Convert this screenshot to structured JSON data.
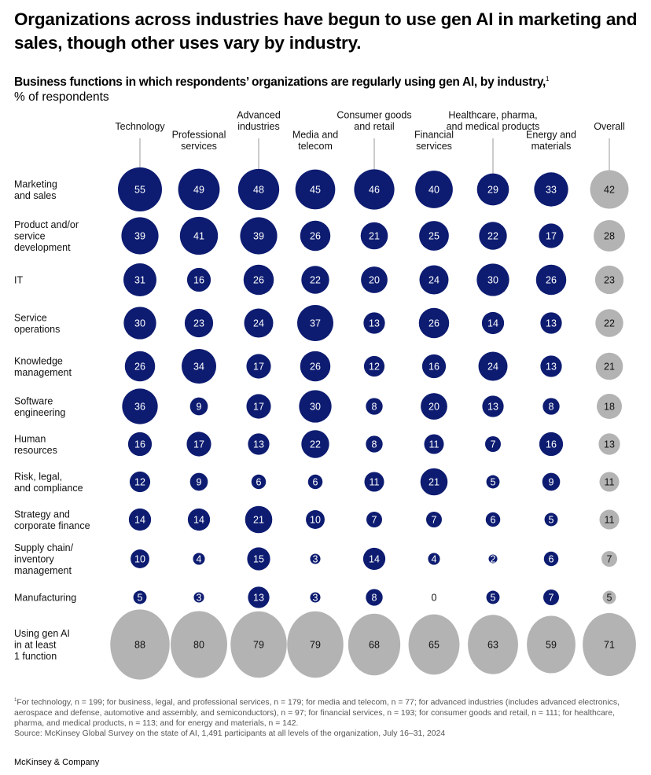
{
  "title": "Organizations across industries have begun to use gen AI in marketing and sales, though other uses vary by industry.",
  "subtitle": "Business functions in which respondents’ organizations are regularly using gen AI, by industry,",
  "subtitle_footnote_marker": "1",
  "units": "% of respondents",
  "colors": {
    "industry_bubble": "#0d1c71",
    "overall_bubble": "#b3b3b3",
    "total_row_bubble": "#b3b3b3",
    "leader_line": "#999999"
  },
  "chart_data": {
    "type": "bubble-matrix",
    "title": "Business functions in which respondents’ organizations are regularly using gen AI, by industry",
    "units": "% of respondents",
    "columns": [
      {
        "name": "Technology",
        "lines": [
          "Technology"
        ],
        "level": "upper"
      },
      {
        "name": "Professional services",
        "lines": [
          "Professional",
          "services"
        ],
        "level": "lower"
      },
      {
        "name": "Advanced industries",
        "lines": [
          "Advanced",
          "industries"
        ],
        "level": "upper"
      },
      {
        "name": "Media and telecom",
        "lines": [
          "Media and",
          "telecom"
        ],
        "level": "lower"
      },
      {
        "name": "Consumer goods and retail",
        "lines": [
          "Consumer goods",
          "and retail"
        ],
        "level": "upper"
      },
      {
        "name": "Financial services",
        "lines": [
          "Financial",
          "services"
        ],
        "level": "lower"
      },
      {
        "name": "Healthcare, pharma, and medical products",
        "lines": [
          "Healthcare, pharma,",
          "and medical products"
        ],
        "level": "upper"
      },
      {
        "name": "Energy and materials",
        "lines": [
          "Energy and",
          "materials"
        ],
        "level": "lower"
      },
      {
        "name": "Overall",
        "lines": [
          "Overall"
        ],
        "level": "upper"
      }
    ],
    "rows": [
      {
        "name": "Marketing and sales",
        "lines": [
          "Marketing",
          "and sales"
        ],
        "values": [
          55,
          49,
          48,
          45,
          46,
          40,
          29,
          33,
          42
        ]
      },
      {
        "name": "Product and/or service development",
        "lines": [
          "Product and/or",
          "service",
          "development"
        ],
        "values": [
          39,
          41,
          39,
          26,
          21,
          25,
          22,
          17,
          28
        ]
      },
      {
        "name": "IT",
        "lines": [
          "IT"
        ],
        "values": [
          31,
          16,
          26,
          22,
          20,
          24,
          30,
          26,
          23
        ]
      },
      {
        "name": "Service operations",
        "lines": [
          "Service",
          "operations"
        ],
        "values": [
          30,
          23,
          24,
          37,
          13,
          26,
          14,
          13,
          22
        ]
      },
      {
        "name": "Knowledge management",
        "lines": [
          "Knowledge",
          "management"
        ],
        "values": [
          26,
          34,
          17,
          26,
          12,
          16,
          24,
          13,
          21
        ]
      },
      {
        "name": "Software engineering",
        "lines": [
          "Software",
          "engineering"
        ],
        "values": [
          36,
          9,
          17,
          30,
          8,
          20,
          13,
          8,
          18
        ]
      },
      {
        "name": "Human resources",
        "lines": [
          "Human",
          "resources"
        ],
        "values": [
          16,
          17,
          13,
          22,
          8,
          11,
          7,
          16,
          13
        ]
      },
      {
        "name": "Risk, legal, and compliance",
        "lines": [
          "Risk, legal,",
          "and compliance"
        ],
        "values": [
          12,
          9,
          6,
          6,
          11,
          21,
          5,
          9,
          11
        ]
      },
      {
        "name": "Strategy and corporate finance",
        "lines": [
          "Strategy and",
          "corporate finance"
        ],
        "values": [
          14,
          14,
          21,
          10,
          7,
          7,
          6,
          5,
          11
        ]
      },
      {
        "name": "Supply chain/inventory management",
        "lines": [
          "Supply chain/",
          "inventory",
          "management"
        ],
        "values": [
          10,
          4,
          15,
          3,
          14,
          4,
          2,
          6,
          7
        ]
      },
      {
        "name": "Manufacturing",
        "lines": [
          "Manufacturing"
        ],
        "values": [
          5,
          3,
          13,
          3,
          8,
          0,
          5,
          7,
          5
        ]
      }
    ],
    "total_row": {
      "name": "Using gen AI in at least 1 function",
      "lines": [
        "Using gen AI",
        "in at least",
        "1 function"
      ],
      "values": [
        88,
        80,
        79,
        79,
        68,
        65,
        63,
        59,
        71
      ]
    },
    "value_range": [
      0,
      100
    ]
  },
  "footnote": {
    "marker": "1",
    "text": "For technology, n = 199; for business, legal, and professional services, n = 179; for media and telecom, n = 77; for advanced industries (includes advanced electronics, aerospace and defense, automotive and assembly, and semiconductors), n = 97; for financial services, n = 193; for consumer goods and retail, n = 111; for healthcare, pharma, and medical products, n = 113; and for energy and materials, n = 142.",
    "source": "Source: McKinsey Global Survey on the state of AI, 1,491 participants at all levels of the organization, July 16–31, 2024"
  },
  "brand": "McKinsey & Company"
}
